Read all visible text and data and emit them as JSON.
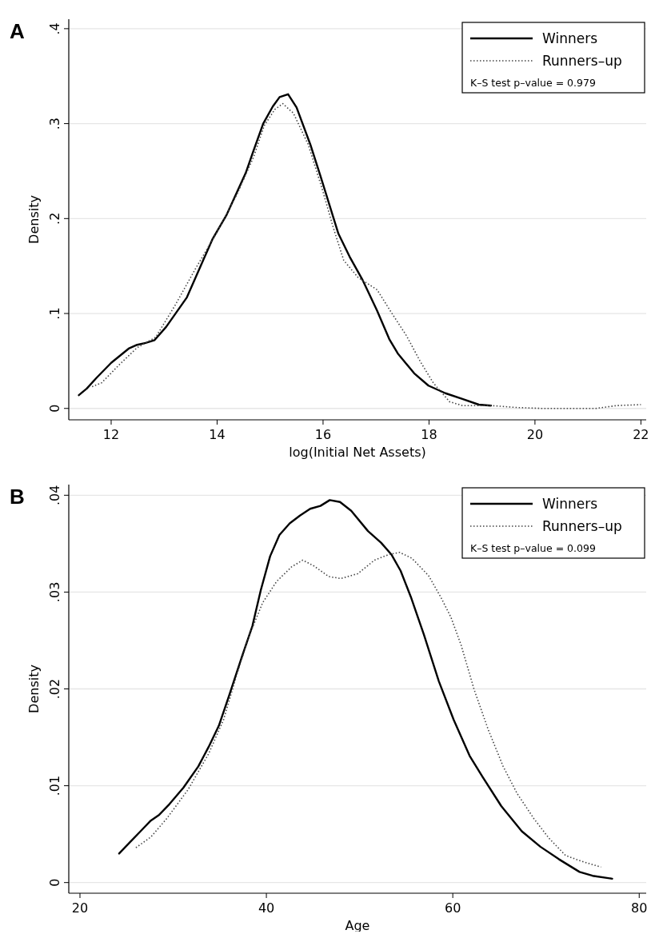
{
  "chart_data": [
    {
      "type": "line",
      "title": "A",
      "xlabel": "log(Initial Net Assets)",
      "ylabel": "Density",
      "xlim": [
        11.2,
        22.1
      ],
      "ylim": [
        -0.012,
        0.41
      ],
      "xticks": [
        12,
        14,
        16,
        18,
        20,
        22
      ],
      "yticks": [
        0,
        {
          "value": 0.1,
          "label": ".1"
        },
        {
          "value": 0.2,
          "label": ".2"
        },
        {
          "value": 0.3,
          "label": ".3"
        },
        {
          "value": 0.4,
          "label": ".4"
        }
      ],
      "grid": "y",
      "legend": "top right",
      "annotations": [
        "K–S test p–value = 0.979"
      ],
      "series": [
        {
          "name": "Winners",
          "color": "#000000",
          "line_style": "solid",
          "x": [
            11.39,
            11.54,
            11.72,
            12.0,
            12.33,
            12.49,
            12.65,
            12.82,
            13.04,
            13.43,
            13.91,
            14.18,
            14.54,
            14.69,
            14.87,
            15.05,
            15.18,
            15.34,
            15.5,
            15.76,
            15.95,
            16.29,
            16.5,
            16.74,
            17.02,
            17.25,
            17.41,
            17.72,
            17.99,
            18.31,
            18.63,
            18.94,
            19.17
          ],
          "values": [
            0.014,
            0.021,
            0.032,
            0.048,
            0.063,
            0.067,
            0.069,
            0.072,
            0.086,
            0.117,
            0.178,
            0.204,
            0.248,
            0.272,
            0.3,
            0.318,
            0.328,
            0.331,
            0.317,
            0.278,
            0.245,
            0.184,
            0.16,
            0.136,
            0.103,
            0.073,
            0.058,
            0.037,
            0.024,
            0.016,
            0.01,
            0.004,
            0.003
          ]
        },
        {
          "name": "Runners–up",
          "color": "#444444",
          "line_style": "dotted",
          "x": [
            11.64,
            11.82,
            12.17,
            12.49,
            12.84,
            13.2,
            13.59,
            13.98,
            14.38,
            14.69,
            14.89,
            15.09,
            15.24,
            15.44,
            15.72,
            15.99,
            16.19,
            16.39,
            16.66,
            17.02,
            17.29,
            17.57,
            17.84,
            18.08,
            18.39,
            18.63,
            19.18,
            19.65,
            20.13,
            21.15,
            21.54,
            22.0
          ],
          "values": [
            0.023,
            0.027,
            0.047,
            0.064,
            0.075,
            0.108,
            0.147,
            0.184,
            0.226,
            0.265,
            0.298,
            0.315,
            0.321,
            0.311,
            0.278,
            0.23,
            0.191,
            0.156,
            0.138,
            0.125,
            0.101,
            0.077,
            0.049,
            0.027,
            0.007,
            0.003,
            0.003,
            0.001,
            0,
            0,
            0.003,
            0.004
          ]
        }
      ]
    },
    {
      "type": "line",
      "title": "B",
      "xlabel": "Age",
      "ylabel": "Density",
      "xlim": [
        18.8,
        80.75
      ],
      "ylim": [
        -0.0011,
        0.0411
      ],
      "xticks": [
        20,
        40,
        60,
        80
      ],
      "yticks": [
        0,
        {
          "value": 0.01,
          "label": ".01"
        },
        {
          "value": 0.02,
          "label": ".02"
        },
        {
          "value": 0.03,
          "label": ".03"
        },
        {
          "value": 0.04,
          "label": ".04"
        }
      ],
      "grid": "y",
      "legend": "top right",
      "annotations": [
        "K–S test p–value = 0.099"
      ],
      "series": [
        {
          "name": "Winners",
          "color": "#000000",
          "line_style": "solid",
          "x": [
            24.2,
            25.1,
            26.5,
            27.6,
            28.5,
            29.6,
            31.1,
            32.7,
            33.8,
            34.9,
            36.0,
            37.4,
            38.5,
            39.4,
            40.4,
            41.4,
            42.5,
            43.6,
            44.7,
            45.8,
            46.8,
            47.9,
            49.1,
            50.9,
            52.3,
            53.4,
            54.4,
            55.5,
            56.9,
            58.5,
            60.1,
            61.8,
            63.2,
            65.2,
            67.4,
            69.4,
            71.4,
            73.6,
            75.0,
            77.1
          ],
          "values": [
            0.003,
            0.0039,
            0.0053,
            0.0064,
            0.007,
            0.0081,
            0.0098,
            0.012,
            0.014,
            0.0162,
            0.0193,
            0.0234,
            0.0265,
            0.0302,
            0.0337,
            0.0359,
            0.0371,
            0.0379,
            0.0386,
            0.0389,
            0.0395,
            0.0393,
            0.0384,
            0.0363,
            0.0351,
            0.0339,
            0.0322,
            0.0295,
            0.0256,
            0.0208,
            0.0168,
            0.0131,
            0.0109,
            0.0079,
            0.0053,
            0.0037,
            0.0024,
            0.0011,
            0.0007,
            0.0004
          ]
        },
        {
          "name": "Runners–up",
          "color": "#444444",
          "line_style": "dotted",
          "x": [
            26.0,
            27.6,
            29.3,
            31.6,
            33.8,
            35.4,
            36.9,
            38.2,
            39.6,
            41.1,
            42.7,
            43.9,
            45.1,
            46.7,
            48.0,
            49.8,
            51.6,
            53.2,
            54.3,
            55.6,
            57.4,
            58.7,
            59.8,
            60.9,
            62.3,
            63.8,
            65.4,
            66.9,
            68.7,
            70.3,
            72.1,
            73.8,
            75.9
          ],
          "values": [
            0.0036,
            0.0047,
            0.0066,
            0.0096,
            0.0133,
            0.0168,
            0.0217,
            0.0256,
            0.0289,
            0.0311,
            0.0326,
            0.0333,
            0.0327,
            0.0316,
            0.0314,
            0.0319,
            0.0333,
            0.0339,
            0.0341,
            0.0335,
            0.0317,
            0.0295,
            0.0274,
            0.0245,
            0.0199,
            0.0158,
            0.012,
            0.0092,
            0.0066,
            0.0046,
            0.0028,
            0.0022,
            0.0016
          ]
        }
      ]
    }
  ]
}
